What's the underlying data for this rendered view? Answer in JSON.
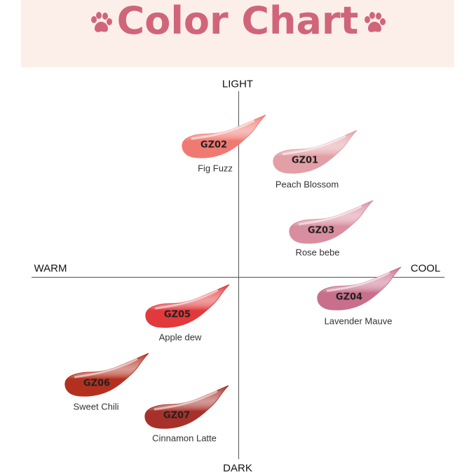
{
  "header": {
    "title": "Color Chart",
    "title_color": "#d0657a",
    "background": "#fcefe9",
    "decor_icon": "paw-print-icon"
  },
  "axes": {
    "top": "LIGHT",
    "bottom": "DARK",
    "left": "WARM",
    "right": "COOL"
  },
  "shades": [
    {
      "code": "GZ02",
      "name": "Fig Fuzz",
      "color": "#f07a72"
    },
    {
      "code": "GZ01",
      "name": "Peach Blossom",
      "color": "#e2a0a6"
    },
    {
      "code": "GZ03",
      "name": "Rose bebe",
      "color": "#d98e9f"
    },
    {
      "code": "GZ04",
      "name": "Lavender Mauve",
      "color": "#c86f8c"
    },
    {
      "code": "GZ05",
      "name": "Apple dew",
      "color": "#e2393c"
    },
    {
      "code": "GZ06",
      "name": "Sweet Chili",
      "color": "#b3301f"
    },
    {
      "code": "GZ07",
      "name": "Cinnamon Latte",
      "color": "#a8302a"
    }
  ]
}
